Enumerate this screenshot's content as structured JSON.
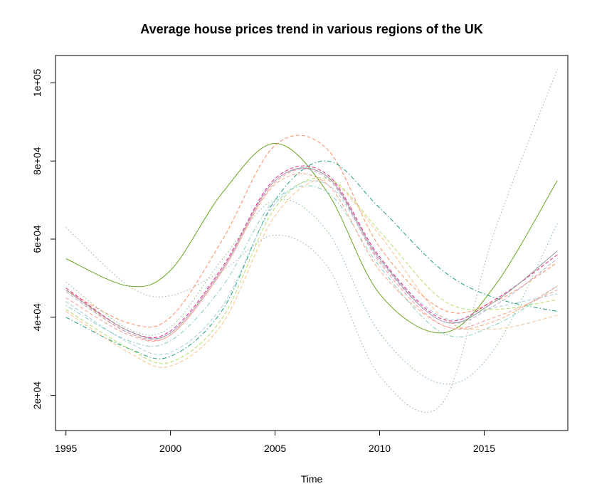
{
  "chart_data": {
    "type": "line",
    "title": "Average house prices trend in various regions of the UK",
    "xlabel": "Time",
    "ylabel": "",
    "xlim": [
      1994.5,
      2019.0
    ],
    "ylim": [
      11000,
      107000
    ],
    "x": [
      1995,
      1998,
      2000,
      2002.5,
      2005,
      2007.5,
      2010,
      2013,
      2015.5,
      2018.5
    ],
    "x_ticks": [
      1995,
      2000,
      2005,
      2010,
      2015
    ],
    "x_tick_labels": [
      "1995",
      "2000",
      "2005",
      "2010",
      "2015"
    ],
    "y_ticks": [
      20000,
      40000,
      60000,
      80000,
      100000
    ],
    "y_tick_labels": [
      "2e+04",
      "4e+04",
      "6e+04",
      "8e+04",
      "1e+05"
    ],
    "grid": false,
    "legend": "none",
    "series": [
      {
        "color": "#66a61e",
        "dash": "solid",
        "values": [
          55000,
          48000,
          52000,
          72000,
          84500,
          72000,
          46000,
          36000,
          48000,
          75000
        ]
      },
      {
        "color": "#fc8d62",
        "dash": "dashed",
        "values": [
          47000,
          38500,
          40000,
          60000,
          84000,
          83000,
          58000,
          42000,
          44000,
          54000
        ]
      },
      {
        "color": "#1b9e77",
        "dash": "dashdot",
        "values": [
          40000,
          32000,
          30000,
          42000,
          70000,
          80000,
          68000,
          52000,
          45000,
          41500
        ]
      },
      {
        "color": "#a6a6a6",
        "dash": "dotted",
        "values": [
          63000,
          48000,
          45500,
          52000,
          61000,
          53000,
          25000,
          18000,
          62000,
          103500
        ]
      },
      {
        "color": "#7fbf7b",
        "dash": "dotted",
        "values": [
          49000,
          37000,
          37500,
          55000,
          70000,
          62000,
          36000,
          23000,
          32000,
          64000
        ]
      },
      {
        "color": "#b3de69",
        "dash": "dashed",
        "values": [
          42000,
          32000,
          28500,
          40000,
          68000,
          75500,
          62000,
          44500,
          42000,
          44500
        ]
      },
      {
        "color": "#fdc086",
        "dash": "dashed",
        "values": [
          41500,
          31000,
          27500,
          38500,
          66000,
          75000,
          61000,
          40000,
          37000,
          40500
        ]
      },
      {
        "color": "#a6cee3",
        "dash": "dashed",
        "values": [
          44000,
          33500,
          31000,
          43000,
          69000,
          74000,
          55000,
          40000,
          42500,
          46000
        ]
      },
      {
        "color": "#80cdc1",
        "dash": "dotdash",
        "values": [
          43000,
          34000,
          34000,
          48000,
          70000,
          72000,
          53000,
          36000,
          38000,
          48000
        ]
      },
      {
        "color": "#f4a582",
        "dash": "dashed",
        "values": [
          47000,
          36000,
          35500,
          52000,
          74000,
          74000,
          52000,
          38000,
          39000,
          48000
        ]
      },
      {
        "color": "#fb9a99",
        "dash": "dashed",
        "values": [
          45000,
          35500,
          35500,
          52000,
          74500,
          76000,
          54000,
          38000,
          40000,
          47000
        ]
      },
      {
        "color": "#e7298a",
        "dash": "dashed",
        "values": [
          47500,
          36500,
          36500,
          53000,
          75500,
          76500,
          55500,
          39500,
          44500,
          56000
        ]
      },
      {
        "color": "#999999",
        "dash": "solid",
        "values": [
          47000,
          36500,
          36000,
          52500,
          75000,
          76000,
          55000,
          39000,
          44000,
          57000
        ]
      },
      {
        "color": "#c2a5cf",
        "dash": "dashed",
        "values": [
          46500,
          36000,
          36000,
          52500,
          75000,
          75500,
          54500,
          39000,
          43000,
          55000
        ]
      }
    ]
  }
}
